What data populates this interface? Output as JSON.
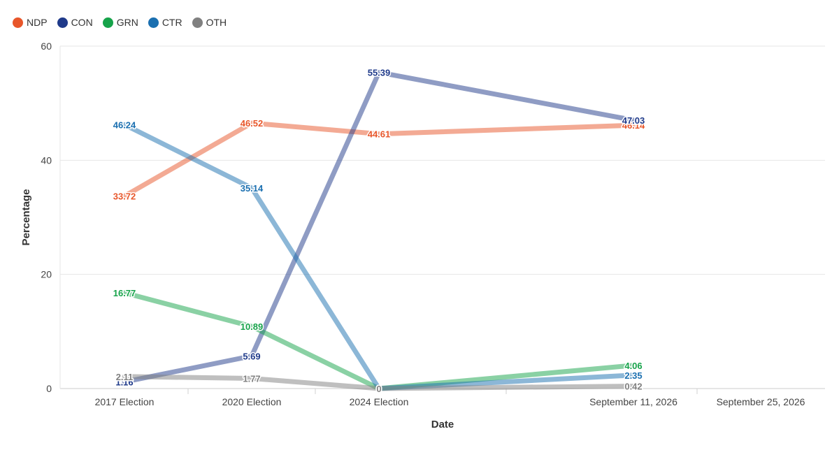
{
  "chart_data": {
    "type": "line",
    "title": "",
    "xlabel": "Date",
    "ylabel": "Percentage",
    "ylim": [
      0,
      60
    ],
    "yticks": [
      0,
      20,
      40,
      60
    ],
    "grid": true,
    "legend_position": "top-left",
    "categories": [
      "2017 Election",
      "2020 Election",
      "2024 Election",
      "September 11, 2026",
      "September 25, 2026"
    ],
    "series": [
      {
        "name": "NDP",
        "color": "#e8562a",
        "values": [
          33.72,
          46.52,
          44.61,
          46.14,
          null
        ],
        "labels": [
          "33.72",
          "46.52",
          "44.61",
          "46.14",
          ""
        ]
      },
      {
        "name": "CON",
        "color": "#1f3a8a",
        "values": [
          1.16,
          5.69,
          55.39,
          47.03,
          null
        ],
        "labels": [
          "1.16",
          "5.69",
          "55.39",
          "47.03",
          ""
        ]
      },
      {
        "name": "GRN",
        "color": "#16a34a",
        "values": [
          16.77,
          10.89,
          0,
          4.06,
          null
        ],
        "labels": [
          "16.77",
          "10.89",
          "0",
          "4.06",
          ""
        ]
      },
      {
        "name": "CTR",
        "color": "#1a6fb0",
        "values": [
          46.24,
          35.14,
          0,
          2.35,
          null
        ],
        "labels": [
          "46.24",
          "35.14",
          "0",
          "2.35",
          ""
        ]
      },
      {
        "name": "OTH",
        "color": "#808080",
        "values": [
          2.11,
          1.77,
          0,
          0.42,
          null
        ],
        "labels": [
          "2.11",
          "1.77",
          "0",
          "0.42",
          ""
        ]
      }
    ]
  }
}
